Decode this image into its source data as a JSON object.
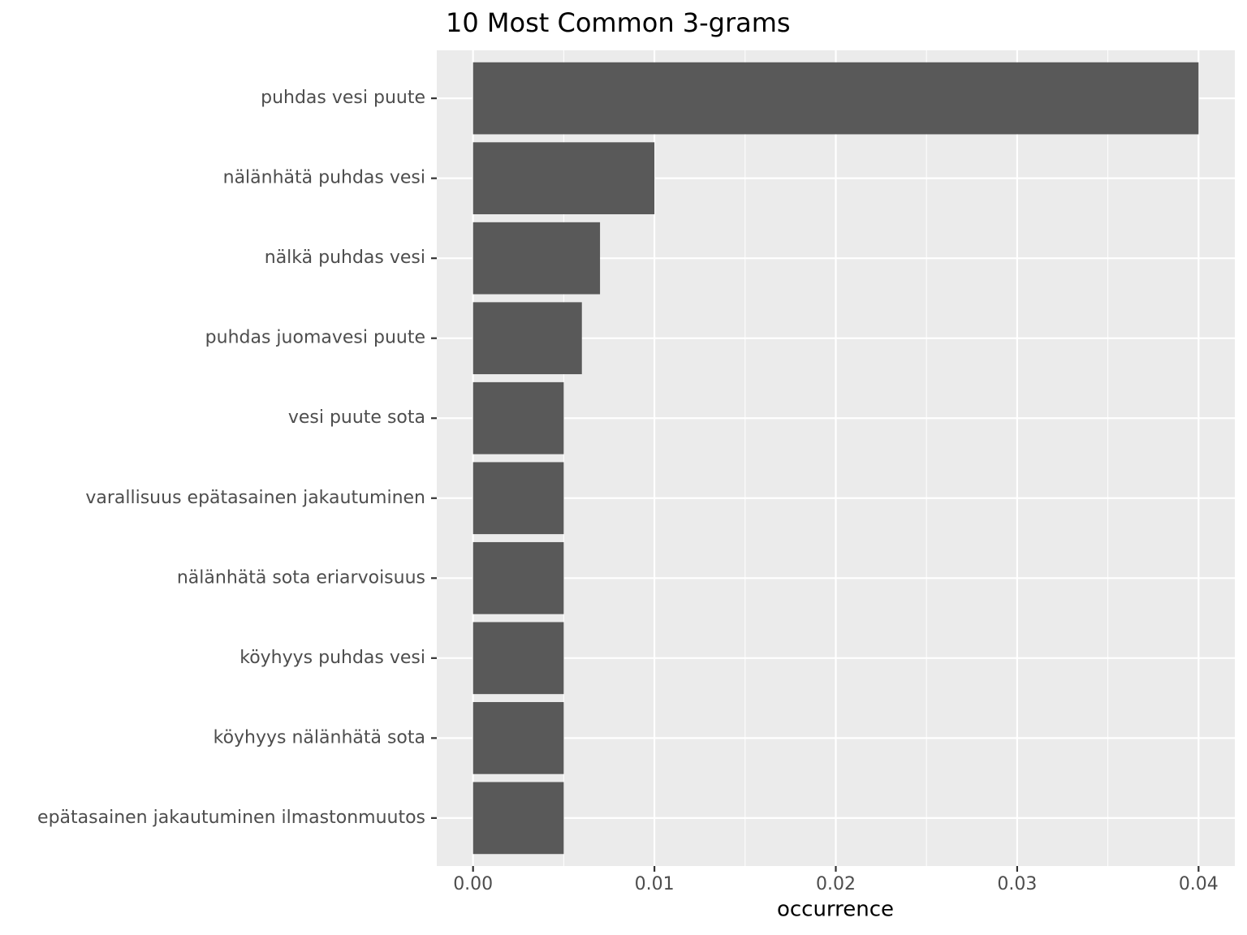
{
  "chart_data": {
    "type": "barh",
    "title": "10 Most Common 3-grams",
    "x_label": "occurrence",
    "categories": [
      "puhdas vesi puute",
      "nälänhätä puhdas vesi",
      "nälkä puhdas vesi",
      "puhdas juomavesi puute",
      "vesi puute sota",
      "varallisuus epätasainen jakautuminen",
      "nälänhätä sota eriarvoisuus",
      "köyhyys puhdas vesi",
      "köyhyys nälänhätä sota",
      "epätasainen jakautuminen ilmastonmuutos"
    ],
    "values": [
      0.04,
      0.01,
      0.007,
      0.006,
      0.005,
      0.005,
      0.005,
      0.005,
      0.005,
      0.005
    ],
    "color": "#595959",
    "xlim": [
      -0.002,
      0.042
    ],
    "xticks": [
      {
        "value": 0,
        "label": "0.00"
      },
      {
        "value": 0.01,
        "label": "0.01"
      },
      {
        "value": 0.02,
        "label": "0.02"
      },
      {
        "value": 0.03,
        "label": "0.03"
      },
      {
        "value": 0.04,
        "label": "0.04"
      }
    ],
    "xminor": [
      0.005,
      0.015,
      0.025,
      0.035
    ],
    "grid": true
  }
}
